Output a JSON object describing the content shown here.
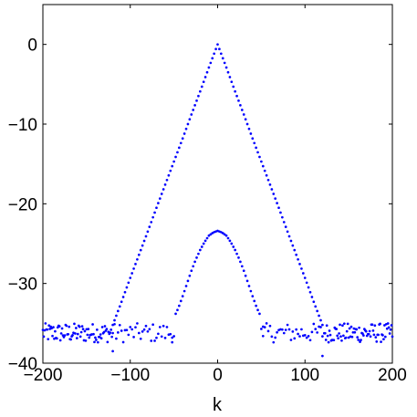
{
  "chart_data": {
    "type": "scatter",
    "title": "",
    "xlabel": "k",
    "ylabel": "",
    "xlim": [
      -200,
      200
    ],
    "ylim": [
      -40,
      5
    ],
    "xticks": [
      -200,
      -100,
      0,
      100,
      200
    ],
    "xtick_labels": [
      "−200",
      "−100",
      "0",
      "100",
      "200"
    ],
    "yticks": [
      -40,
      -30,
      -20,
      -10,
      0
    ],
    "ytick_labels": [
      "−40",
      "−30",
      "−20",
      "−10",
      "0"
    ],
    "grid": false,
    "legend": "none",
    "marker_color": "#0000ff",
    "series": [
      {
        "description": "triangle",
        "x": [
          -120,
          -110,
          -100,
          -90,
          -80,
          -70,
          -60,
          -50,
          -40,
          -30,
          -20,
          -10,
          0,
          10,
          20,
          30,
          40,
          50,
          60,
          70,
          80,
          90,
          100,
          110,
          120
        ],
        "y": [
          -35.2,
          -32.3,
          -29.3,
          -26.4,
          -23.5,
          -20.5,
          -17.6,
          -14.7,
          -11.8,
          -8.8,
          -5.9,
          -2.9,
          0,
          -2.9,
          -5.9,
          -8.8,
          -11.8,
          -14.7,
          -17.6,
          -20.5,
          -23.5,
          -26.4,
          -29.3,
          -32.3,
          -35.2
        ]
      },
      {
        "description": "bump",
        "x": [
          -48,
          -45,
          -40,
          -35,
          -30,
          -25,
          -20,
          -15,
          -10,
          -5,
          0,
          5,
          10,
          15,
          20,
          25,
          30,
          35,
          40,
          45,
          48
        ],
        "y": [
          -33.8,
          -33.1,
          -31.6,
          -30.0,
          -28.4,
          -27.0,
          -25.8,
          -24.8,
          -24.0,
          -23.6,
          -23.4,
          -23.6,
          -24.0,
          -24.8,
          -25.8,
          -27.0,
          -28.4,
          -30.0,
          -31.6,
          -33.1,
          -33.8
        ]
      },
      {
        "description": "noise floor",
        "x": [
          -200,
          200
        ],
        "y": [
          -36.2,
          -36.2
        ],
        "spread": 1.2
      }
    ]
  }
}
